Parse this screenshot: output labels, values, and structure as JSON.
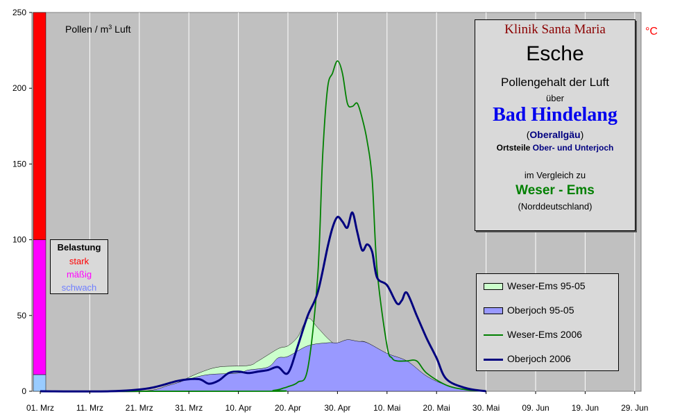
{
  "info": {
    "clinic": "Klinik Santa Maria",
    "plant": "Esche",
    "desc": "Pollengehalt der Luft",
    "ueber": "über",
    "place": "Bad Hindelang",
    "region_open": "(",
    "region": "Oberallgäu",
    "region_close": ")",
    "districts_prefix": "Ortsteile ",
    "districts": "Ober- und Unterjoch",
    "compare": "im Vergleich zu",
    "compare_region": "Weser - Ems",
    "compare_note": "(Norddeutschland)"
  },
  "unit_c": "°C",
  "belastung": {
    "title": "Belastung",
    "strong": "stark",
    "moderate": "mäßig",
    "weak": "schwach",
    "colors": {
      "strong": "#ff0000",
      "moderate": "#ff00ff",
      "weak": "#99ccff"
    },
    "thresholds": [
      11,
      100,
      250
    ]
  },
  "chart_data": {
    "type": "area",
    "ylabel": "Pollen / m³ Luft",
    "ylim": [
      0,
      250
    ],
    "yticks": [
      "0",
      "50",
      "100",
      "150",
      "200",
      "250"
    ],
    "x_tick_labels": [
      "01. Mrz",
      "11. Mrz",
      "21. Mrz",
      "31. Mrz",
      "10. Apr",
      "20. Apr",
      "30. Apr",
      "10. Mai",
      "20. Mai",
      "30. Mai",
      "09. Jun",
      "19. Jun",
      "29. Jun"
    ],
    "x_unit": "days since 01. Mrz",
    "xlim": [
      0,
      122
    ],
    "grid": true,
    "legend_position": "bottom-right",
    "series": [
      {
        "name": "Weser-Ems 95-05",
        "kind": "area",
        "color": "#ccffcc",
        "x": [
          0,
          24,
          28,
          32,
          36,
          42,
          44,
          48,
          50,
          52,
          54,
          56,
          58,
          60,
          62,
          64,
          66,
          72,
          78,
          82,
          86,
          90
        ],
        "y": [
          0,
          0,
          6,
          12,
          16,
          17,
          20,
          28,
          30,
          36,
          48,
          42,
          35,
          30,
          30,
          32,
          32,
          20,
          7,
          3,
          1,
          0
        ]
      },
      {
        "name": "Oberjoch 95-05",
        "kind": "area",
        "color": "#9999ff",
        "x": [
          0,
          20,
          26,
          30,
          34,
          40,
          42,
          46,
          48,
          50,
          54,
          58,
          60,
          62,
          64,
          66,
          70,
          74,
          78,
          82,
          86,
          90
        ],
        "y": [
          0,
          0,
          4,
          8,
          11,
          12,
          14,
          16,
          22,
          23,
          30,
          32,
          32,
          34,
          33,
          32,
          25,
          20,
          10,
          4,
          1,
          0
        ]
      },
      {
        "name": "Weser-Ems 2006",
        "kind": "line",
        "color": "#008000",
        "x": [
          0,
          46,
          47,
          48,
          49,
          50,
          52,
          54,
          56,
          57,
          58,
          59,
          60,
          61,
          62,
          63,
          64,
          65,
          66,
          67,
          68,
          70,
          71,
          72,
          74,
          76,
          78,
          82,
          86,
          90
        ],
        "y": [
          0,
          0,
          0.5,
          1,
          2,
          3,
          6,
          15,
          75,
          155,
          200,
          210,
          218,
          210,
          190,
          188,
          190,
          180,
          165,
          140,
          80,
          30,
          22,
          20,
          20,
          20,
          12,
          4,
          1,
          0
        ]
      },
      {
        "name": "Oberjoch 2006",
        "kind": "line",
        "color": "#00007f",
        "x": [
          0,
          14,
          22,
          28,
          32,
          34,
          36,
          38,
          40,
          42,
          44,
          46,
          48,
          50,
          52,
          54,
          56,
          58,
          59,
          60,
          61,
          62,
          63,
          64,
          65,
          66,
          67,
          68,
          70,
          72,
          73,
          74,
          76,
          78,
          80,
          82,
          86,
          90
        ],
        "y": [
          0,
          0,
          2,
          7,
          8,
          5,
          7,
          12,
          13,
          12,
          13,
          14,
          16,
          12,
          30,
          50,
          65,
          95,
          108,
          115,
          112,
          108,
          118,
          105,
          93,
          97,
          92,
          75,
          70,
          58,
          60,
          65,
          50,
          35,
          22,
          8,
          2,
          0
        ]
      }
    ]
  }
}
